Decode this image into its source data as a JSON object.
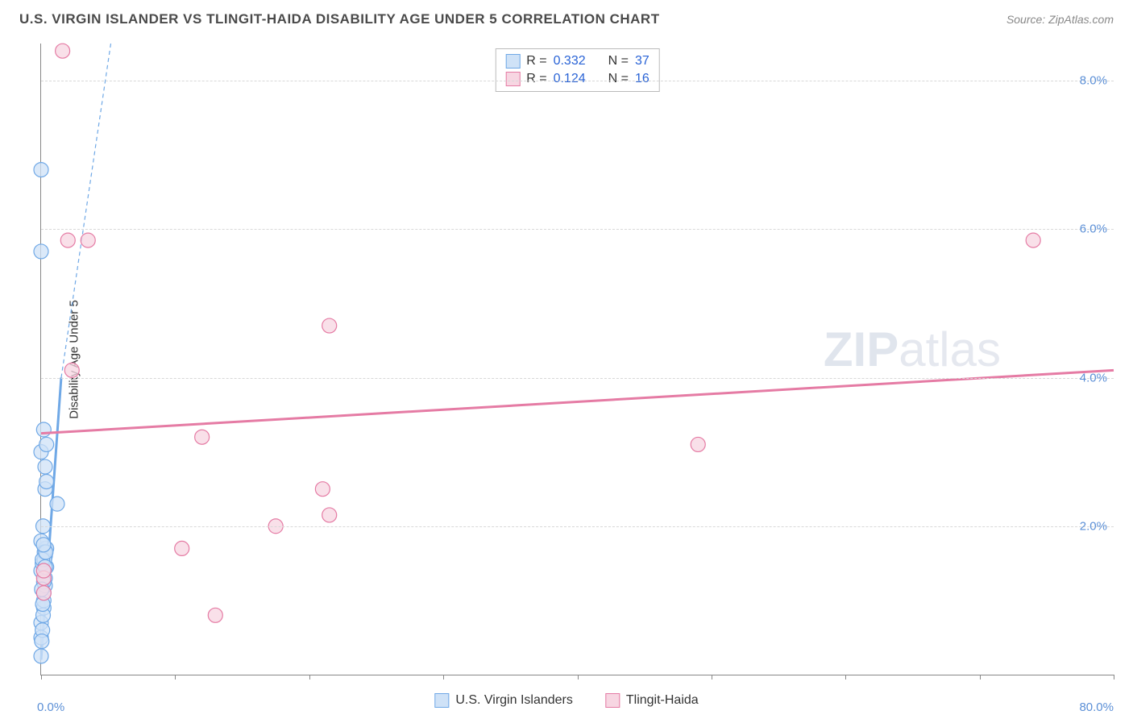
{
  "title": "U.S. VIRGIN ISLANDER VS TLINGIT-HAIDA DISABILITY AGE UNDER 5 CORRELATION CHART",
  "source": "Source: ZipAtlas.com",
  "ylabel": "Disability Age Under 5",
  "watermark_bold": "ZIP",
  "watermark_rest": "atlas",
  "chart": {
    "type": "scatter",
    "xlim": [
      0,
      80
    ],
    "ylim": [
      0,
      8.5
    ],
    "x_ticks": [
      0,
      10,
      20,
      30,
      40,
      50,
      60,
      70,
      80
    ],
    "x_tick_labels": {
      "0": "0.0%",
      "80": "80.0%"
    },
    "y_gridlines": [
      2,
      4,
      6,
      8
    ],
    "y_tick_labels": {
      "2": "2.0%",
      "4": "4.0%",
      "6": "6.0%",
      "8": "8.0%"
    },
    "background_color": "#ffffff",
    "grid_color": "#d8d8d8",
    "axis_color": "#888888",
    "tick_label_color": "#5b8fd6",
    "marker_radius": 9,
    "marker_stroke_width": 1.2,
    "series": [
      {
        "id": "usvi",
        "label": "U.S. Virgin Islanders",
        "fill": "#cfe2f7",
        "stroke": "#6fa8e6",
        "swatch_fill": "#cfe2f7",
        "swatch_stroke": "#6fa8e6",
        "R_label": "R =",
        "R_value": "0.332",
        "N_label": "N =",
        "N_value": "37",
        "trend": {
          "x1": 0,
          "y1": 0.2,
          "x2": 1.5,
          "y2": 4.0,
          "width": 3,
          "dash": null
        },
        "trend_ext": {
          "x1": 1.5,
          "y1": 4.0,
          "x2": 5.2,
          "y2": 8.5,
          "width": 1.2,
          "dash": "5,4"
        },
        "points": [
          [
            0.0,
            0.25
          ],
          [
            0.0,
            0.5
          ],
          [
            0.0,
            0.7
          ],
          [
            0.2,
            0.9
          ],
          [
            0.2,
            1.0
          ],
          [
            0.2,
            1.1
          ],
          [
            0.3,
            1.2
          ],
          [
            0.3,
            1.3
          ],
          [
            0.0,
            1.4
          ],
          [
            0.4,
            1.45
          ],
          [
            0.3,
            1.6
          ],
          [
            0.3,
            1.7
          ],
          [
            0.4,
            1.7
          ],
          [
            0.0,
            1.8
          ],
          [
            1.2,
            2.3
          ],
          [
            0.3,
            2.5
          ],
          [
            0.4,
            2.6
          ],
          [
            0.3,
            2.8
          ],
          [
            0.0,
            3.0
          ],
          [
            0.4,
            3.1
          ],
          [
            0.2,
            3.3
          ],
          [
            0.0,
            5.7
          ],
          [
            0.0,
            6.8
          ],
          [
            0.1,
            0.6
          ],
          [
            0.15,
            0.8
          ],
          [
            0.2,
            1.25
          ],
          [
            0.1,
            1.5
          ],
          [
            0.25,
            1.55
          ],
          [
            0.25,
            1.65
          ],
          [
            0.1,
            1.55
          ],
          [
            0.35,
            1.65
          ],
          [
            0.05,
            1.15
          ],
          [
            0.15,
            2.0
          ],
          [
            0.05,
            0.45
          ],
          [
            0.12,
            0.95
          ],
          [
            0.3,
            1.45
          ],
          [
            0.18,
            1.75
          ]
        ]
      },
      {
        "id": "tlingit",
        "label": "Tlingit-Haida",
        "fill": "#f7d6e2",
        "stroke": "#e57ba4",
        "swatch_fill": "#f7d6e2",
        "swatch_stroke": "#e57ba4",
        "R_label": "R =",
        "R_value": "0.124",
        "N_label": "N =",
        "N_value": "16",
        "trend": {
          "x1": 0,
          "y1": 3.25,
          "x2": 80,
          "y2": 4.1,
          "width": 3,
          "dash": null
        },
        "points": [
          [
            0.2,
            1.1
          ],
          [
            0.2,
            1.3
          ],
          [
            0.2,
            1.4
          ],
          [
            10.5,
            1.7
          ],
          [
            13.0,
            0.8
          ],
          [
            17.5,
            2.0
          ],
          [
            21.5,
            2.15
          ],
          [
            21.0,
            2.5
          ],
          [
            12.0,
            3.2
          ],
          [
            2.3,
            4.1
          ],
          [
            21.5,
            4.7
          ],
          [
            2.0,
            5.85
          ],
          [
            3.5,
            5.85
          ],
          [
            49.0,
            3.1
          ],
          [
            74.0,
            5.85
          ],
          [
            1.6,
            8.4
          ]
        ]
      }
    ]
  },
  "legend_bottom": [
    {
      "series": "usvi"
    },
    {
      "series": "tlingit"
    }
  ]
}
